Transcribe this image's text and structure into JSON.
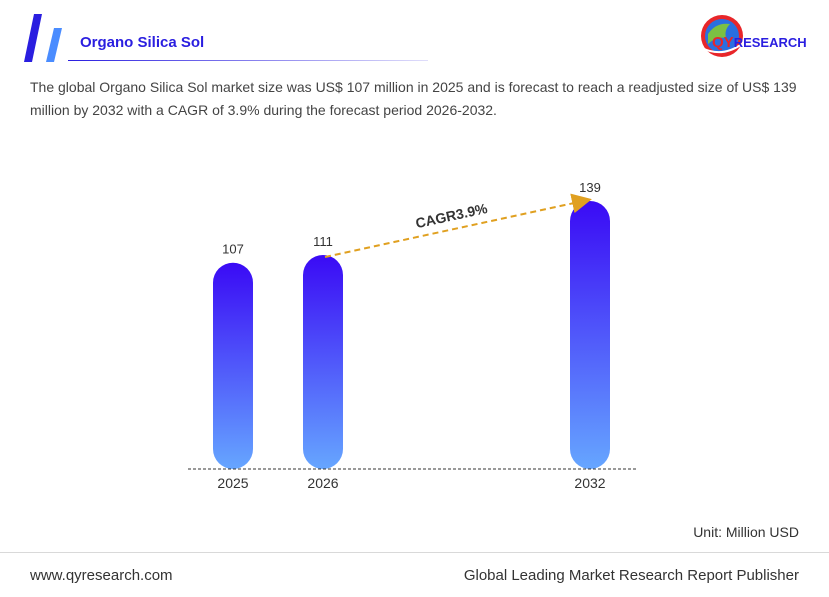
{
  "header": {
    "title": "Organo Silica Sol",
    "logo_prefix": "QY",
    "logo_suffix": "RESEARCH"
  },
  "description": "The global Organo Silica Sol market size was US$ 107 million in 2025 and is forecast to reach a readjusted size of US$ 139 million by 2032 with a CAGR of 3.9% during the forecast period 2026-2032.",
  "unit": "Unit: Million USD",
  "footer": {
    "website": "www.qyresearch.com",
    "tagline": "Global Leading Market Research Report Publisher"
  },
  "colors": {
    "accent": "#2a1ee0",
    "bar_top": "#3a0af5",
    "bar_bottom": "#66a6ff",
    "cagr_arrow": "#e0a020"
  },
  "chart_data": {
    "type": "bar",
    "categories": [
      "2025",
      "2026",
      "2032"
    ],
    "values": [
      107,
      111,
      139
    ],
    "annotation": {
      "text": "CAGR3.9%",
      "from": "2026",
      "to": "2032"
    },
    "grid": false
  }
}
